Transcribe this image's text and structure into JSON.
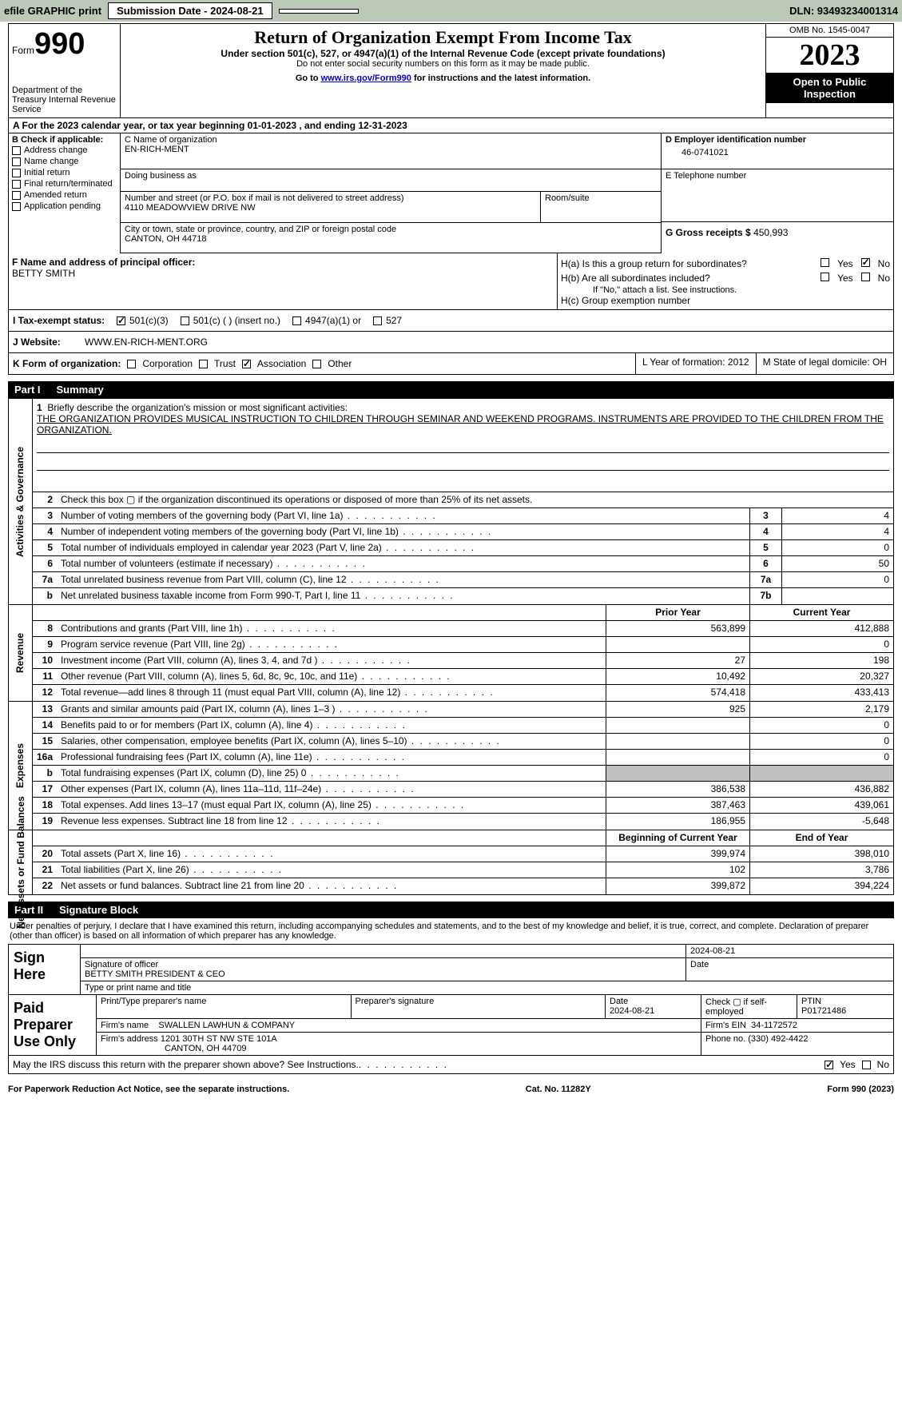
{
  "topbar": {
    "efile_label": "efile GRAPHIC print",
    "submission": "Submission Date - 2024-08-21",
    "dln": "DLN: 93493234001314"
  },
  "header": {
    "form_prefix": "Form",
    "form_number": "990",
    "dept": "Department of the Treasury Internal Revenue Service",
    "title": "Return of Organization Exempt From Income Tax",
    "subtitle": "Under section 501(c), 527, or 4947(a)(1) of the Internal Revenue Code (except private foundations)",
    "note1": "Do not enter social security numbers on this form as it may be made public.",
    "note2_pre": "Go to ",
    "note2_link": "www.irs.gov/Form990",
    "note2_post": " for instructions and the latest information.",
    "omb": "OMB No. 1545-0047",
    "year": "2023",
    "inspection": "Open to Public Inspection"
  },
  "row_a": "A For the 2023 calendar year, or tax year beginning 01-01-2023   , and ending 12-31-2023",
  "box_b": {
    "label": "B Check if applicable:",
    "items": [
      "Address change",
      "Name change",
      "Initial return",
      "Final return/terminated",
      "Amended return",
      "Application pending"
    ]
  },
  "box_c": {
    "name_label": "C Name of organization",
    "name": "EN-RICH-MENT",
    "dba_label": "Doing business as",
    "addr_label": "Number and street (or P.O. box if mail is not delivered to street address)",
    "addr": "4110 MEADOWVIEW DRIVE NW",
    "room_label": "Room/suite",
    "city_label": "City or town, state or province, country, and ZIP or foreign postal code",
    "city": "CANTON, OH  44718"
  },
  "box_d": {
    "label": "D Employer identification number",
    "ein": "46-0741021",
    "tel_label": "E Telephone number",
    "gross_label": "G Gross receipts $",
    "gross": "450,993"
  },
  "box_f": {
    "label": "F  Name and address of principal officer:",
    "name": "BETTY SMITH"
  },
  "box_h": {
    "ha_label": "H(a)  Is this a group return for subordinates?",
    "hb_label": "H(b)  Are all subordinates included?",
    "hb_note": "If \"No,\" attach a list. See instructions.",
    "hc_label": "H(c)  Group exemption number",
    "yes": "Yes",
    "no": "No"
  },
  "row_i": {
    "label": "I    Tax-exempt status:",
    "o1": "501(c)(3)",
    "o2": "501(c) (  ) (insert no.)",
    "o3": "4947(a)(1) or",
    "o4": "527"
  },
  "row_j": {
    "label": "J    Website:",
    "val": "WWW.EN-RICH-MENT.ORG"
  },
  "row_k": {
    "label": "K Form of organization:",
    "o1": "Corporation",
    "o2": "Trust",
    "o3": "Association",
    "o4": "Other",
    "l": "L Year of formation: 2012",
    "m": "M State of legal domicile: OH"
  },
  "part1": {
    "num": "Part I",
    "title": "Summary"
  },
  "mission": {
    "q": "Briefly describe the organization's mission or most significant activities:",
    "text": "THE ORGANIZATION PROVIDES MUSICAL INSTRUCTION TO CHILDREN THROUGH SEMINAR AND WEEKEND PROGRAMS. INSTRUMENTS ARE PROVIDED TO THE CHILDREN FROM THE ORGANIZATION."
  },
  "sections": {
    "governance": "Activities & Governance",
    "revenue": "Revenue",
    "expenses": "Expenses",
    "netassets": "Net Assets or Fund Balances"
  },
  "lines_gov": [
    {
      "n": "2",
      "t": "Check this box ▢ if the organization discontinued its operations or disposed of more than 25% of its net assets."
    },
    {
      "n": "3",
      "t": "Number of voting members of the governing body (Part VI, line 1a)",
      "box": "3",
      "v": "4"
    },
    {
      "n": "4",
      "t": "Number of independent voting members of the governing body (Part VI, line 1b)",
      "box": "4",
      "v": "4"
    },
    {
      "n": "5",
      "t": "Total number of individuals employed in calendar year 2023 (Part V, line 2a)",
      "box": "5",
      "v": "0"
    },
    {
      "n": "6",
      "t": "Total number of volunteers (estimate if necessary)",
      "box": "6",
      "v": "50"
    },
    {
      "n": "7a",
      "t": "Total unrelated business revenue from Part VIII, column (C), line 12",
      "box": "7a",
      "v": "0"
    },
    {
      "n": "b",
      "t": "Net unrelated business taxable income from Form 990-T, Part I, line 11",
      "box": "7b",
      "v": ""
    }
  ],
  "col_hdr": {
    "prior": "Prior Year",
    "current": "Current Year"
  },
  "lines_rev": [
    {
      "n": "8",
      "t": "Contributions and grants (Part VIII, line 1h)",
      "p": "563,899",
      "c": "412,888"
    },
    {
      "n": "9",
      "t": "Program service revenue (Part VIII, line 2g)",
      "p": "",
      "c": "0"
    },
    {
      "n": "10",
      "t": "Investment income (Part VIII, column (A), lines 3, 4, and 7d )",
      "p": "27",
      "c": "198"
    },
    {
      "n": "11",
      "t": "Other revenue (Part VIII, column (A), lines 5, 6d, 8c, 9c, 10c, and 11e)",
      "p": "10,492",
      "c": "20,327"
    },
    {
      "n": "12",
      "t": "Total revenue—add lines 8 through 11 (must equal Part VIII, column (A), line 12)",
      "p": "574,418",
      "c": "433,413"
    }
  ],
  "lines_exp": [
    {
      "n": "13",
      "t": "Grants and similar amounts paid (Part IX, column (A), lines 1–3 )",
      "p": "925",
      "c": "2,179"
    },
    {
      "n": "14",
      "t": "Benefits paid to or for members (Part IX, column (A), line 4)",
      "p": "",
      "c": "0"
    },
    {
      "n": "15",
      "t": "Salaries, other compensation, employee benefits (Part IX, column (A), lines 5–10)",
      "p": "",
      "c": "0"
    },
    {
      "n": "16a",
      "t": "Professional fundraising fees (Part IX, column (A), line 11e)",
      "p": "",
      "c": "0"
    },
    {
      "n": "b",
      "t": "Total fundraising expenses (Part IX, column (D), line 25) 0",
      "p": "gray",
      "c": "gray"
    },
    {
      "n": "17",
      "t": "Other expenses (Part IX, column (A), lines 11a–11d, 11f–24e)",
      "p": "386,538",
      "c": "436,882"
    },
    {
      "n": "18",
      "t": "Total expenses. Add lines 13–17 (must equal Part IX, column (A), line 25)",
      "p": "387,463",
      "c": "439,061"
    },
    {
      "n": "19",
      "t": "Revenue less expenses. Subtract line 18 from line 12",
      "p": "186,955",
      "c": "-5,648"
    }
  ],
  "col_hdr2": {
    "prior": "Beginning of Current Year",
    "current": "End of Year"
  },
  "lines_net": [
    {
      "n": "20",
      "t": "Total assets (Part X, line 16)",
      "p": "399,974",
      "c": "398,010"
    },
    {
      "n": "21",
      "t": "Total liabilities (Part X, line 26)",
      "p": "102",
      "c": "3,786"
    },
    {
      "n": "22",
      "t": "Net assets or fund balances. Subtract line 21 from line 20",
      "p": "399,872",
      "c": "394,224"
    }
  ],
  "part2": {
    "num": "Part II",
    "title": "Signature Block"
  },
  "sig_declaration": "Under penalties of perjury, I declare that I have examined this return, including accompanying schedules and statements, and to the best of my knowledge and belief, it is true, correct, and complete. Declaration of preparer (other than officer) is based on all information of which preparer has any knowledge.",
  "sign": {
    "label": "Sign Here",
    "date": "2024-08-21",
    "sig_label": "Signature of officer",
    "name": "BETTY SMITH  PRESIDENT & CEO",
    "type_label": "Type or print name and title",
    "date_label": "Date"
  },
  "prep": {
    "label": "Paid Preparer Use Only",
    "print_label": "Print/Type preparer's name",
    "sig_label": "Preparer's signature",
    "date_label": "Date",
    "date": "2024-08-21",
    "check_label": "Check ▢ if self-employed",
    "ptin_label": "PTIN",
    "ptin": "P01721486",
    "firm_name_label": "Firm's name",
    "firm_name": "SWALLEN LAWHUN & COMPANY",
    "firm_ein_label": "Firm's EIN",
    "firm_ein": "34-1172572",
    "firm_addr_label": "Firm's address",
    "firm_addr": "1201 30TH ST NW STE 101A",
    "firm_city": "CANTON, OH  44709",
    "phone_label": "Phone no.",
    "phone": "(330) 492-4422"
  },
  "footer": {
    "q": "May the IRS discuss this return with the preparer shown above? See Instructions.",
    "yes": "Yes",
    "no": "No"
  },
  "bottom": {
    "left": "For Paperwork Reduction Act Notice, see the separate instructions.",
    "mid": "Cat. No. 11282Y",
    "right": "Form 990 (2023)"
  }
}
